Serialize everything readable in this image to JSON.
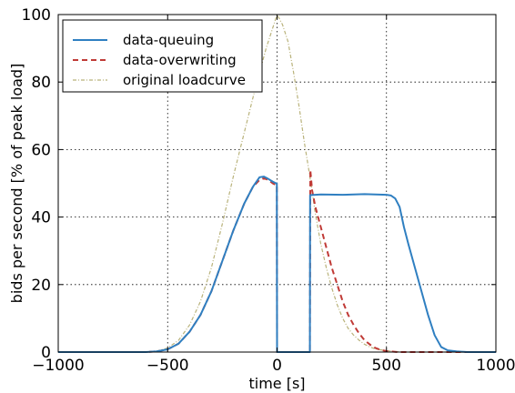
{
  "chart_data": {
    "type": "line",
    "xlabel": "time [s]",
    "ylabel": "bids per second [% of peak load]",
    "xlim": [
      -1000,
      1000
    ],
    "ylim": [
      0,
      100
    ],
    "xticks": [
      -1000,
      -500,
      0,
      500,
      1000
    ],
    "xtick_labels": [
      "−1000",
      "−500",
      "0",
      "500",
      "1000"
    ],
    "yticks": [
      0,
      20,
      40,
      60,
      80,
      100
    ],
    "ytick_labels": [
      "0",
      "20",
      "40",
      "60",
      "80",
      "100"
    ],
    "grid": true,
    "legend_position": "top-left",
    "series": [
      {
        "name": "data-queuing",
        "color": "#2f7fc1",
        "style": "solid",
        "points": [
          [
            -1000,
            0
          ],
          [
            -600,
            0
          ],
          [
            -550,
            0.2
          ],
          [
            -500,
            0.8
          ],
          [
            -450,
            2.5
          ],
          [
            -400,
            6
          ],
          [
            -350,
            11
          ],
          [
            -300,
            18
          ],
          [
            -250,
            27
          ],
          [
            -200,
            36
          ],
          [
            -150,
            44
          ],
          [
            -110,
            49
          ],
          [
            -80,
            51.8
          ],
          [
            -60,
            52
          ],
          [
            -40,
            51.3
          ],
          [
            -20,
            50.5
          ],
          [
            -5,
            50
          ],
          [
            -1,
            50
          ],
          [
            0,
            0
          ],
          [
            150,
            0
          ],
          [
            151,
            46.5
          ],
          [
            200,
            46.7
          ],
          [
            300,
            46.6
          ],
          [
            400,
            46.8
          ],
          [
            500,
            46.6
          ],
          [
            520,
            46.4
          ],
          [
            540,
            45.5
          ],
          [
            560,
            43
          ],
          [
            580,
            37
          ],
          [
            600,
            32
          ],
          [
            630,
            25
          ],
          [
            660,
            18
          ],
          [
            690,
            11
          ],
          [
            720,
            5
          ],
          [
            750,
            1.5
          ],
          [
            780,
            0.5
          ],
          [
            820,
            0.2
          ],
          [
            870,
            0
          ],
          [
            1000,
            0
          ]
        ]
      },
      {
        "name": "data-overwriting",
        "color": "#c03a36",
        "style": "dashed",
        "points": [
          [
            -1000,
            0
          ],
          [
            -600,
            0
          ],
          [
            -550,
            0.2
          ],
          [
            -500,
            0.8
          ],
          [
            -450,
            2.5
          ],
          [
            -400,
            6
          ],
          [
            -350,
            11
          ],
          [
            -300,
            18
          ],
          [
            -250,
            27
          ],
          [
            -200,
            36
          ],
          [
            -150,
            44
          ],
          [
            -110,
            49
          ],
          [
            -80,
            51
          ],
          [
            -60,
            51.5
          ],
          [
            -40,
            51
          ],
          [
            -20,
            50
          ],
          [
            -5,
            49.5
          ],
          [
            -1,
            49.5
          ],
          [
            0,
            0
          ],
          [
            150,
            0
          ],
          [
            152,
            54
          ],
          [
            160,
            48
          ],
          [
            175,
            43
          ],
          [
            200,
            37
          ],
          [
            225,
            31
          ],
          [
            250,
            25
          ],
          [
            275,
            20
          ],
          [
            300,
            15
          ],
          [
            325,
            11
          ],
          [
            350,
            8
          ],
          [
            375,
            5.5
          ],
          [
            400,
            3.5
          ],
          [
            425,
            2.2
          ],
          [
            450,
            1.2
          ],
          [
            475,
            0.6
          ],
          [
            500,
            0.3
          ],
          [
            550,
            0
          ],
          [
            1000,
            0
          ]
        ]
      },
      {
        "name": "original loadcurve",
        "color": "#b9b27a",
        "style": "dashdot",
        "points": [
          [
            -1000,
            0
          ],
          [
            -600,
            0
          ],
          [
            -550,
            0.3
          ],
          [
            -500,
            1.2
          ],
          [
            -450,
            3.5
          ],
          [
            -400,
            8
          ],
          [
            -350,
            15
          ],
          [
            -300,
            25
          ],
          [
            -250,
            38
          ],
          [
            -200,
            52
          ],
          [
            -150,
            65
          ],
          [
            -100,
            78
          ],
          [
            -50,
            90
          ],
          [
            0,
            100
          ],
          [
            25,
            97
          ],
          [
            50,
            92
          ],
          [
            75,
            83
          ],
          [
            100,
            73
          ],
          [
            125,
            62
          ],
          [
            150,
            52
          ],
          [
            175,
            41
          ],
          [
            200,
            32
          ],
          [
            225,
            25
          ],
          [
            250,
            19
          ],
          [
            275,
            14
          ],
          [
            300,
            10
          ],
          [
            325,
            7
          ],
          [
            350,
            5
          ],
          [
            375,
            3.5
          ],
          [
            400,
            2.3
          ],
          [
            425,
            1.5
          ],
          [
            450,
            0.9
          ],
          [
            500,
            0.4
          ],
          [
            550,
            0.1
          ],
          [
            600,
            0
          ],
          [
            1000,
            0
          ]
        ]
      }
    ]
  }
}
